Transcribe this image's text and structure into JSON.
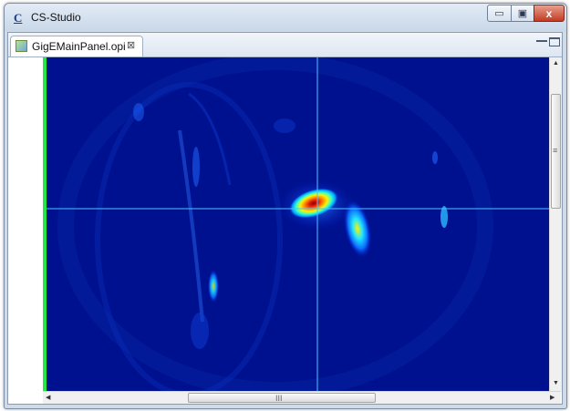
{
  "window": {
    "title": "CS-Studio",
    "app_icon": "C",
    "controls": {
      "minimize": "▭",
      "maximize": "▣",
      "close": "x"
    }
  },
  "editor": {
    "tab_label": "GigEMainPanel.opi",
    "tab_close": "⊠",
    "tab_icon": "opi-display-icon"
  },
  "image_view": {
    "colormap": "jet",
    "crosshair_color": "#47c7ff",
    "background_color": "#00118f",
    "marker_bar_color": "#22e64a"
  },
  "scrollbars": {
    "up_arrow": "▲",
    "down_arrow": "▼",
    "left_arrow": "◀",
    "right_arrow": "▶",
    "vertical_grip": "≡",
    "horizontal_grip": "III"
  }
}
